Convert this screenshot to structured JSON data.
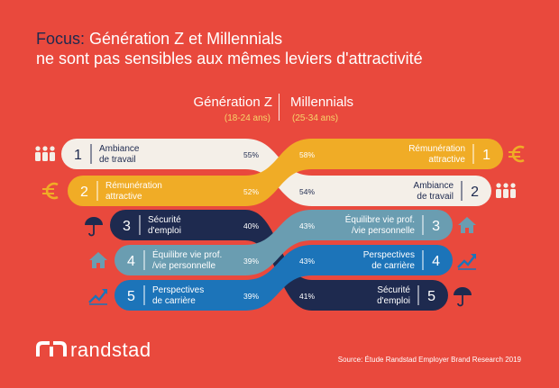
{
  "header": {
    "title_prefix": "Focus:",
    "title_line1": "Génération Z et Millennials",
    "title_line2": "ne sont pas sensibles aux mêmes leviers d'attractivité"
  },
  "columns": {
    "left_title": "Génération Z",
    "left_sub": "(18-24 ans)",
    "right_title": "Millennials",
    "right_sub": "(25-34 ans)"
  },
  "colors": {
    "background": "#e9493d",
    "cream": "#f4efe8",
    "gold": "#f0ac26",
    "navy": "#1e2a4f",
    "teal": "#6a9db1",
    "blue": "#1c74b9"
  },
  "chart_data": {
    "type": "bar",
    "title": "Focus: Génération Z et Millennials ne sont pas sensibles aux mêmes leviers d'attractivité",
    "series": [
      {
        "name": "Génération Z",
        "ranks": [
          "1",
          "2",
          "3",
          "4",
          "5"
        ],
        "labels": [
          [
            "Ambiance",
            "de travail"
          ],
          [
            "Rémunération",
            "attractive"
          ],
          [
            "Sécurité",
            "d'emploi"
          ],
          [
            "Équilibre vie prof.",
            "/vie personnelle"
          ],
          [
            "Perspectives",
            "de carrière"
          ]
        ],
        "percent_labels": [
          "55%",
          "52%",
          "40%",
          "39%",
          "39%"
        ],
        "values": [
          55,
          52,
          40,
          39,
          39
        ]
      },
      {
        "name": "Millennials",
        "ranks": [
          "1",
          "2",
          "3",
          "4",
          "5"
        ],
        "labels": [
          [
            "Rémunération",
            "attractive"
          ],
          [
            "Ambiance",
            "de travail"
          ],
          [
            "Équilibre vie prof.",
            "/vie personnelle"
          ],
          [
            "Perspectives",
            "de carrière"
          ],
          [
            "Sécurité",
            "d'emploi"
          ]
        ],
        "percent_labels": [
          "58%",
          "54%",
          "43%",
          "43%",
          "41%"
        ],
        "values": [
          58,
          54,
          43,
          43,
          41
        ]
      }
    ],
    "connections": [
      {
        "from_rank": 1,
        "to_rank": 2,
        "color": "cream",
        "icon": "people-icon"
      },
      {
        "from_rank": 2,
        "to_rank": 1,
        "color": "gold",
        "icon": "euro-icon"
      },
      {
        "from_rank": 3,
        "to_rank": 5,
        "color": "navy",
        "icon": "umbrella-icon"
      },
      {
        "from_rank": 4,
        "to_rank": 3,
        "color": "teal",
        "icon": "house-icon"
      },
      {
        "from_rank": 5,
        "to_rank": 4,
        "color": "blue",
        "icon": "chart-up-icon"
      }
    ]
  },
  "footer": {
    "brand": "randstad",
    "source": "Source: Étude Randstad Employer Brand Research 2019"
  }
}
